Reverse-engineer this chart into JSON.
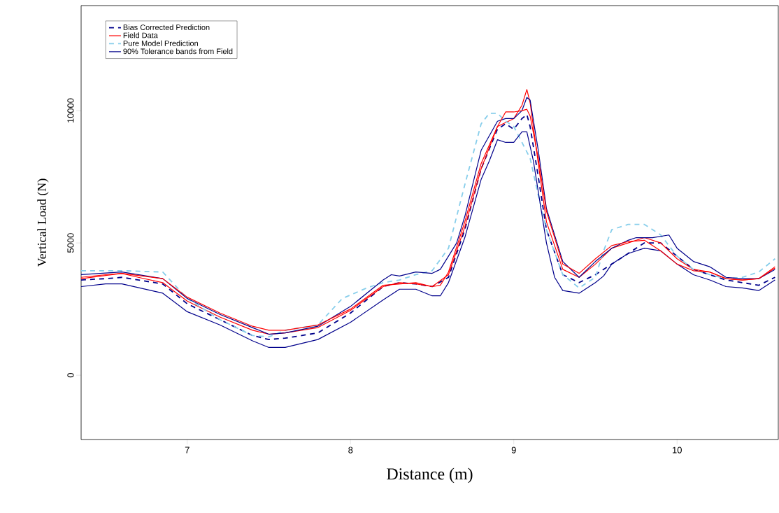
{
  "chart_data": {
    "type": "line",
    "xlabel": "Distance (m)",
    "ylabel": "Vertical Load (N)",
    "xlim": [
      6.35,
      10.62
    ],
    "ylim": [
      -2430,
      13970
    ],
    "xticks": [
      7,
      8,
      9,
      10
    ],
    "yticks": [
      0,
      5000,
      10000
    ],
    "grid": false,
    "legend": "top left",
    "marker": "none",
    "series": [
      {
        "name": "Bias Corrected Prediction",
        "color": "#00008b",
        "line_style": "dashed",
        "x": [
          6.35,
          6.5,
          6.6,
          6.85,
          7.0,
          7.2,
          7.4,
          7.5,
          7.6,
          7.8,
          8.0,
          8.2,
          8.3,
          8.4,
          8.5,
          8.6,
          8.7,
          8.8,
          8.9,
          8.95,
          9.0,
          9.05,
          9.08,
          9.1,
          9.15,
          9.2,
          9.3,
          9.4,
          9.5,
          9.6,
          9.7,
          9.8,
          9.9,
          10.0,
          10.1,
          10.2,
          10.3,
          10.4,
          10.5,
          10.6
        ],
        "values": [
          3600,
          3650,
          3700,
          3450,
          2700,
          2100,
          1500,
          1350,
          1400,
          1600,
          2350,
          3350,
          3500,
          3450,
          3350,
          3700,
          5500,
          7800,
          9300,
          9500,
          9300,
          9700,
          9850,
          9400,
          7500,
          5500,
          3800,
          3500,
          3800,
          4200,
          4600,
          5000,
          5000,
          4500,
          4000,
          3800,
          3600,
          3500,
          3400,
          3700
        ]
      },
      {
        "name": "Field Data",
        "color": "#ff0000",
        "line_style": "solid",
        "x": [
          6.35,
          6.5,
          6.6,
          6.7,
          6.85,
          7.0,
          7.2,
          7.4,
          7.5,
          7.6,
          7.8,
          8.0,
          8.2,
          8.3,
          8.4,
          8.5,
          8.55,
          8.6,
          8.7,
          8.8,
          8.9,
          9.0,
          9.05,
          9.08,
          9.1,
          9.15,
          9.2,
          9.3,
          9.4,
          9.5,
          9.6,
          9.7,
          9.8,
          9.9,
          10.0,
          10.1,
          10.2,
          10.3,
          10.4,
          10.5,
          10.6
        ],
        "values": [
          3700,
          3800,
          3850,
          3700,
          3500,
          2800,
          2200,
          1700,
          1550,
          1600,
          1800,
          2450,
          3350,
          3500,
          3450,
          3350,
          3400,
          3900,
          5800,
          8000,
          9400,
          9700,
          10200,
          10800,
          10300,
          8000,
          5800,
          4000,
          3700,
          4200,
          4800,
          5000,
          5200,
          5000,
          4400,
          4000,
          3900,
          3650,
          3600,
          3650,
          4100
        ]
      },
      {
        "name": "Pure Model Prediction",
        "color": "#87ceeb",
        "line_style": "dashed",
        "x": [
          6.35,
          6.6,
          6.85,
          7.0,
          7.2,
          7.4,
          7.5,
          7.6,
          7.8,
          7.95,
          8.1,
          8.2,
          8.3,
          8.4,
          8.5,
          8.6,
          8.7,
          8.8,
          8.85,
          8.9,
          8.95,
          9.0,
          9.05,
          9.1,
          9.15,
          9.2,
          9.3,
          9.4,
          9.5,
          9.55,
          9.6,
          9.7,
          9.8,
          9.9,
          10.0,
          10.1,
          10.2,
          10.3,
          10.4,
          10.5,
          10.6
        ],
        "values": [
          3950,
          3950,
          3900,
          2900,
          2100,
          1500,
          1450,
          1700,
          1900,
          2900,
          3300,
          3500,
          3600,
          3800,
          3950,
          4800,
          7200,
          9500,
          9900,
          9900,
          9600,
          9400,
          8800,
          8200,
          6800,
          5500,
          3800,
          3300,
          3700,
          4700,
          5500,
          5700,
          5700,
          5300,
          4500,
          4000,
          3800,
          3650,
          3700,
          3900,
          4400
        ]
      },
      {
        "name": "90% Tolerance bands from Field",
        "color": "#00008b",
        "line_style": "solid",
        "x": [
          6.35,
          6.6,
          6.85,
          7.0,
          7.2,
          7.4,
          7.5,
          7.6,
          7.8,
          8.0,
          8.2,
          8.25,
          8.3,
          8.4,
          8.5,
          8.55,
          8.65,
          8.7,
          8.8,
          8.9,
          8.95,
          9.0,
          9.05,
          9.08,
          9.1,
          9.15,
          9.2,
          9.3,
          9.4,
          9.5,
          9.6,
          9.7,
          9.75,
          9.85,
          9.95,
          10.0,
          10.1,
          10.2,
          10.3,
          10.4,
          10.5,
          10.6
        ],
        "values": [
          3800,
          3900,
          3650,
          2900,
          2300,
          1800,
          1550,
          1600,
          1850,
          2600,
          3600,
          3800,
          3750,
          3900,
          3850,
          4000,
          5000,
          6000,
          8500,
          9600,
          9700,
          9700,
          10000,
          10500,
          10400,
          8500,
          6300,
          4300,
          3700,
          4300,
          4800,
          5100,
          5200,
          5200,
          5300,
          4800,
          4300,
          4100,
          3700,
          3650,
          3650,
          4000
        ]
      },
      {
        "color": "#00008b",
        "line_style": "solid",
        "x": [
          6.35,
          6.5,
          6.6,
          6.85,
          7.0,
          7.2,
          7.4,
          7.5,
          7.6,
          7.8,
          8.0,
          8.2,
          8.3,
          8.4,
          8.5,
          8.55,
          8.6,
          8.7,
          8.8,
          8.85,
          8.9,
          8.95,
          9.0,
          9.05,
          9.08,
          9.12,
          9.2,
          9.25,
          9.3,
          9.4,
          9.5,
          9.55,
          9.6,
          9.7,
          9.8,
          9.9,
          10.0,
          10.1,
          10.2,
          10.3,
          10.4,
          10.5,
          10.6
        ],
        "values": [
          3350,
          3450,
          3450,
          3100,
          2400,
          1900,
          1300,
          1050,
          1050,
          1350,
          2000,
          2850,
          3250,
          3250,
          3000,
          3000,
          3500,
          5200,
          7400,
          8100,
          8900,
          8800,
          8800,
          9200,
          9200,
          8100,
          5000,
          3700,
          3200,
          3100,
          3500,
          3750,
          4200,
          4600,
          4800,
          4700,
          4200,
          3800,
          3600,
          3350,
          3300,
          3200,
          3600
        ]
      },
      {
        "color": "#ff0000",
        "line_style": "solid",
        "x": [
          6.35,
          6.6,
          6.85,
          7.0,
          7.2,
          7.4,
          7.5,
          7.6,
          7.8,
          8.0,
          8.2,
          8.4,
          8.5,
          8.6,
          8.7,
          8.8,
          8.9,
          8.95,
          9.0,
          9.05,
          9.08,
          9.1,
          9.15,
          9.2,
          9.3,
          9.4,
          9.5,
          9.6,
          9.7,
          9.8,
          9.9,
          10.0,
          10.1,
          10.2,
          10.3,
          10.4,
          10.5,
          10.6
        ],
        "values": [
          3650,
          3850,
          3650,
          2950,
          2350,
          1850,
          1700,
          1700,
          1900,
          2500,
          3400,
          3500,
          3350,
          3800,
          5600,
          7800,
          9400,
          9950,
          9950,
          10000,
          10050,
          9800,
          8200,
          6200,
          4200,
          3850,
          4400,
          4900,
          5050,
          5100,
          4700,
          4200,
          3950,
          3900,
          3650,
          3600,
          3650,
          4050
        ]
      }
    ]
  }
}
